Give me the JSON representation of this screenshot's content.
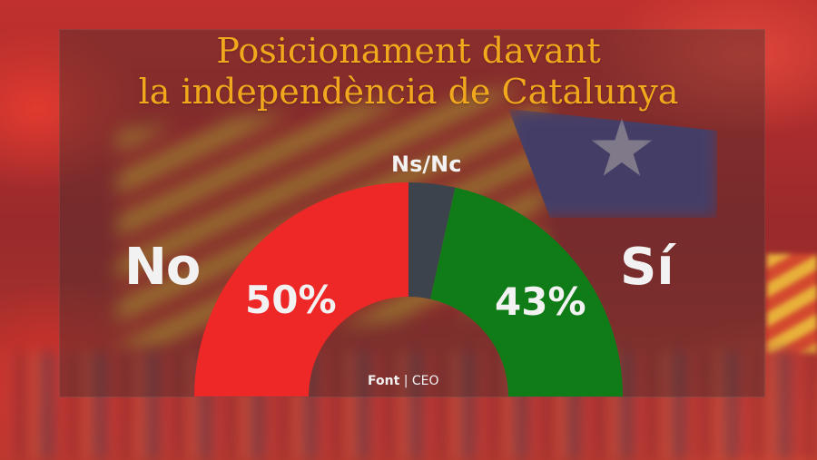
{
  "title": {
    "line1": "Posicionament davant",
    "line2": "la independència de Catalunya"
  },
  "labels": {
    "no": "No",
    "si": "Sí",
    "nsnc": "Ns/Nc"
  },
  "values_display": {
    "no": "50%",
    "si": "43%"
  },
  "source": {
    "prefix": "Font",
    "separator": "|",
    "name": "CEO"
  },
  "colors": {
    "title": "#f2a81d",
    "no": "#ee2727",
    "nsnc": "#3d434c",
    "si": "#107c18",
    "text": "#f2f2f2"
  },
  "chart_data": {
    "type": "pie",
    "subtype": "semicircle-donut-gauge",
    "title": "Posicionament davant la independència de Catalunya",
    "categories": [
      "No",
      "Ns/Nc",
      "Sí"
    ],
    "values": [
      50,
      7,
      43
    ],
    "unit": "%",
    "data_labels": [
      "50%",
      "",
      "43%"
    ],
    "order": "left-to-right",
    "colors": [
      "#ee2727",
      "#3d434c",
      "#107c18"
    ],
    "source": "Font | CEO",
    "legend": "none (labels beside arc)"
  }
}
